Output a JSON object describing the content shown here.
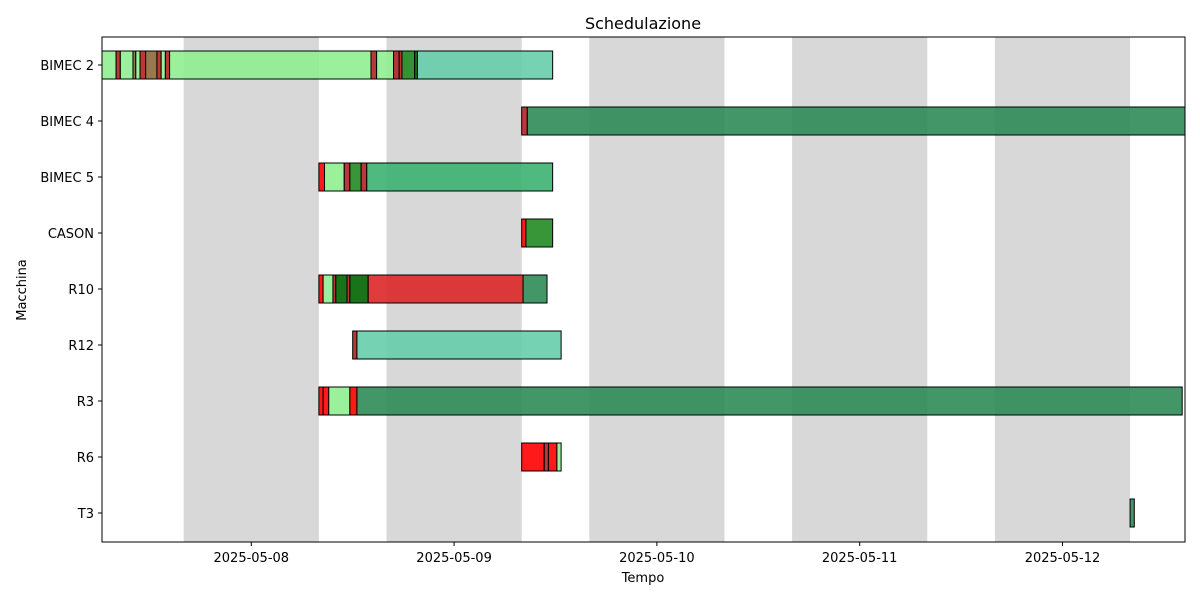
{
  "chart_data": {
    "type": "gantt",
    "title": "Schedulazione",
    "xlabel": "Tempo",
    "ylabel": "Macchina",
    "x_range": [
      "2025-05-07T06:20",
      "2025-05-12T14:30"
    ],
    "x_ticks": [
      "2025-05-08",
      "2025-05-09",
      "2025-05-10",
      "2025-05-11",
      "2025-05-12"
    ],
    "machines": [
      "BIMEC 2",
      "BIMEC 4",
      "BIMEC 5",
      "CASON",
      "R10",
      "R12",
      "R3",
      "R6",
      "T3"
    ],
    "shaded_periods": [
      [
        "2025-05-07T16:00",
        "2025-05-08T08:00"
      ],
      [
        "2025-05-08T16:00",
        "2025-05-09T08:00"
      ],
      [
        "2025-05-09T16:00",
        "2025-05-10T08:00"
      ],
      [
        "2025-05-10T16:00",
        "2025-05-11T08:00"
      ],
      [
        "2025-05-11T16:00",
        "2025-05-12T08:00"
      ]
    ],
    "colors": {
      "red": "#ff0000",
      "darkred": "#b22222",
      "lightgreen": "#90ee90",
      "forestgreen": "#228b22",
      "darkgreen": "#006400",
      "seagreen": "#2e8b57",
      "mediumaquamarine": "#66cdaa",
      "olivedrab": "#8b6b3b",
      "mediumseagreen": "#3cb371",
      "crimson": "#dc2828"
    },
    "tasks": [
      {
        "machine": "BIMEC 2",
        "start": "2025-05-07T06:20",
        "end": "2025-05-07T08:00",
        "color": "lightgreen"
      },
      {
        "machine": "BIMEC 2",
        "start": "2025-05-07T08:00",
        "end": "2025-05-07T08:30",
        "color": "darkred"
      },
      {
        "machine": "BIMEC 2",
        "start": "2025-05-07T08:30",
        "end": "2025-05-07T10:00",
        "color": "lightgreen"
      },
      {
        "machine": "BIMEC 2",
        "start": "2025-05-07T10:00",
        "end": "2025-05-07T10:20",
        "color": "olivedrab"
      },
      {
        "machine": "BIMEC 2",
        "start": "2025-05-07T10:20",
        "end": "2025-05-07T10:50",
        "color": "lightgreen"
      },
      {
        "machine": "BIMEC 2",
        "start": "2025-05-07T10:50",
        "end": "2025-05-07T11:30",
        "color": "darkred"
      },
      {
        "machine": "BIMEC 2",
        "start": "2025-05-07T11:30",
        "end": "2025-05-07T12:50",
        "color": "olivedrab"
      },
      {
        "machine": "BIMEC 2",
        "start": "2025-05-07T12:50",
        "end": "2025-05-07T13:20",
        "color": "darkred"
      },
      {
        "machine": "BIMEC 2",
        "start": "2025-05-07T13:20",
        "end": "2025-05-07T13:50",
        "color": "lightgreen"
      },
      {
        "machine": "BIMEC 2",
        "start": "2025-05-07T13:50",
        "end": "2025-05-07T14:20",
        "color": "darkred"
      },
      {
        "machine": "BIMEC 2",
        "start": "2025-05-07T14:20",
        "end": "2025-05-08T14:10",
        "color": "lightgreen"
      },
      {
        "machine": "BIMEC 2",
        "start": "2025-05-08T14:10",
        "end": "2025-05-08T14:50",
        "color": "darkred"
      },
      {
        "machine": "BIMEC 2",
        "start": "2025-05-08T14:50",
        "end": "2025-05-08T16:50",
        "color": "lightgreen"
      },
      {
        "machine": "BIMEC 2",
        "start": "2025-05-08T16:50",
        "end": "2025-05-08T17:30",
        "color": "darkred"
      },
      {
        "machine": "BIMEC 2",
        "start": "2025-05-08T17:30",
        "end": "2025-05-08T17:50",
        "color": "darkred"
      },
      {
        "machine": "BIMEC 2",
        "start": "2025-05-08T17:50",
        "end": "2025-05-08T19:20",
        "color": "forestgreen"
      },
      {
        "machine": "BIMEC 2",
        "start": "2025-05-08T19:20",
        "end": "2025-05-08T19:40",
        "color": "darkgreen"
      },
      {
        "machine": "BIMEC 2",
        "start": "2025-05-08T19:40",
        "end": "2025-05-09T11:40",
        "color": "mediumaquamarine"
      },
      {
        "machine": "BIMEC 4",
        "start": "2025-05-09T08:00",
        "end": "2025-05-09T08:40",
        "color": "darkred"
      },
      {
        "machine": "BIMEC 4",
        "start": "2025-05-09T08:40",
        "end": "2025-05-12T14:30",
        "color": "seagreen"
      },
      {
        "machine": "BIMEC 5",
        "start": "2025-05-08T08:00",
        "end": "2025-05-08T08:40",
        "color": "red"
      },
      {
        "machine": "BIMEC 5",
        "start": "2025-05-08T08:40",
        "end": "2025-05-08T11:00",
        "color": "lightgreen"
      },
      {
        "machine": "BIMEC 5",
        "start": "2025-05-08T11:00",
        "end": "2025-05-08T11:40",
        "color": "darkred"
      },
      {
        "machine": "BIMEC 5",
        "start": "2025-05-08T11:40",
        "end": "2025-05-08T13:00",
        "color": "forestgreen"
      },
      {
        "machine": "BIMEC 5",
        "start": "2025-05-08T13:00",
        "end": "2025-05-08T13:40",
        "color": "darkred"
      },
      {
        "machine": "BIMEC 5",
        "start": "2025-05-08T13:40",
        "end": "2025-05-09T11:40",
        "color": "mediumseagreen"
      },
      {
        "machine": "CASON",
        "start": "2025-05-09T08:00",
        "end": "2025-05-09T08:30",
        "color": "red"
      },
      {
        "machine": "CASON",
        "start": "2025-05-09T08:30",
        "end": "2025-05-09T11:40",
        "color": "forestgreen"
      },
      {
        "machine": "R10",
        "start": "2025-05-08T08:00",
        "end": "2025-05-08T08:30",
        "color": "red"
      },
      {
        "machine": "R10",
        "start": "2025-05-08T08:30",
        "end": "2025-05-08T09:40",
        "color": "lightgreen"
      },
      {
        "machine": "R10",
        "start": "2025-05-08T09:40",
        "end": "2025-05-08T10:00",
        "color": "darkred"
      },
      {
        "machine": "R10",
        "start": "2025-05-08T10:00",
        "end": "2025-05-08T11:20",
        "color": "darkgreen"
      },
      {
        "machine": "R10",
        "start": "2025-05-08T11:20",
        "end": "2025-05-08T11:40",
        "color": "darkred"
      },
      {
        "machine": "R10",
        "start": "2025-05-08T11:40",
        "end": "2025-05-08T13:50",
        "color": "darkgreen"
      },
      {
        "machine": "R10",
        "start": "2025-05-08T13:50",
        "end": "2025-05-09T08:10",
        "color": "crimson"
      },
      {
        "machine": "R10",
        "start": "2025-05-09T08:10",
        "end": "2025-05-09T11:00",
        "color": "seagreen"
      },
      {
        "machine": "R12",
        "start": "2025-05-08T12:00",
        "end": "2025-05-08T12:30",
        "color": "darkred"
      },
      {
        "machine": "R12",
        "start": "2025-05-08T12:30",
        "end": "2025-05-09T12:40",
        "color": "mediumaquamarine"
      },
      {
        "machine": "R3",
        "start": "2025-05-08T08:00",
        "end": "2025-05-08T08:30",
        "color": "red"
      },
      {
        "machine": "R3",
        "start": "2025-05-08T08:30",
        "end": "2025-05-08T09:10",
        "color": "red"
      },
      {
        "machine": "R3",
        "start": "2025-05-08T09:10",
        "end": "2025-05-08T11:40",
        "color": "lightgreen"
      },
      {
        "machine": "R3",
        "start": "2025-05-08T11:40",
        "end": "2025-05-08T12:30",
        "color": "red"
      },
      {
        "machine": "R3",
        "start": "2025-05-08T12:30",
        "end": "2025-05-12T14:10",
        "color": "seagreen"
      },
      {
        "machine": "R6",
        "start": "2025-05-09T08:00",
        "end": "2025-05-09T10:40",
        "color": "red"
      },
      {
        "machine": "R6",
        "start": "2025-05-09T10:40",
        "end": "2025-05-09T11:10",
        "color": "darkred"
      },
      {
        "machine": "R6",
        "start": "2025-05-09T11:10",
        "end": "2025-05-09T12:10",
        "color": "red"
      },
      {
        "machine": "R6",
        "start": "2025-05-09T12:10",
        "end": "2025-05-09T12:40",
        "color": "lightgreen"
      },
      {
        "machine": "T3",
        "start": "2025-05-12T08:00",
        "end": "2025-05-12T08:30",
        "color": "seagreen"
      }
    ]
  }
}
